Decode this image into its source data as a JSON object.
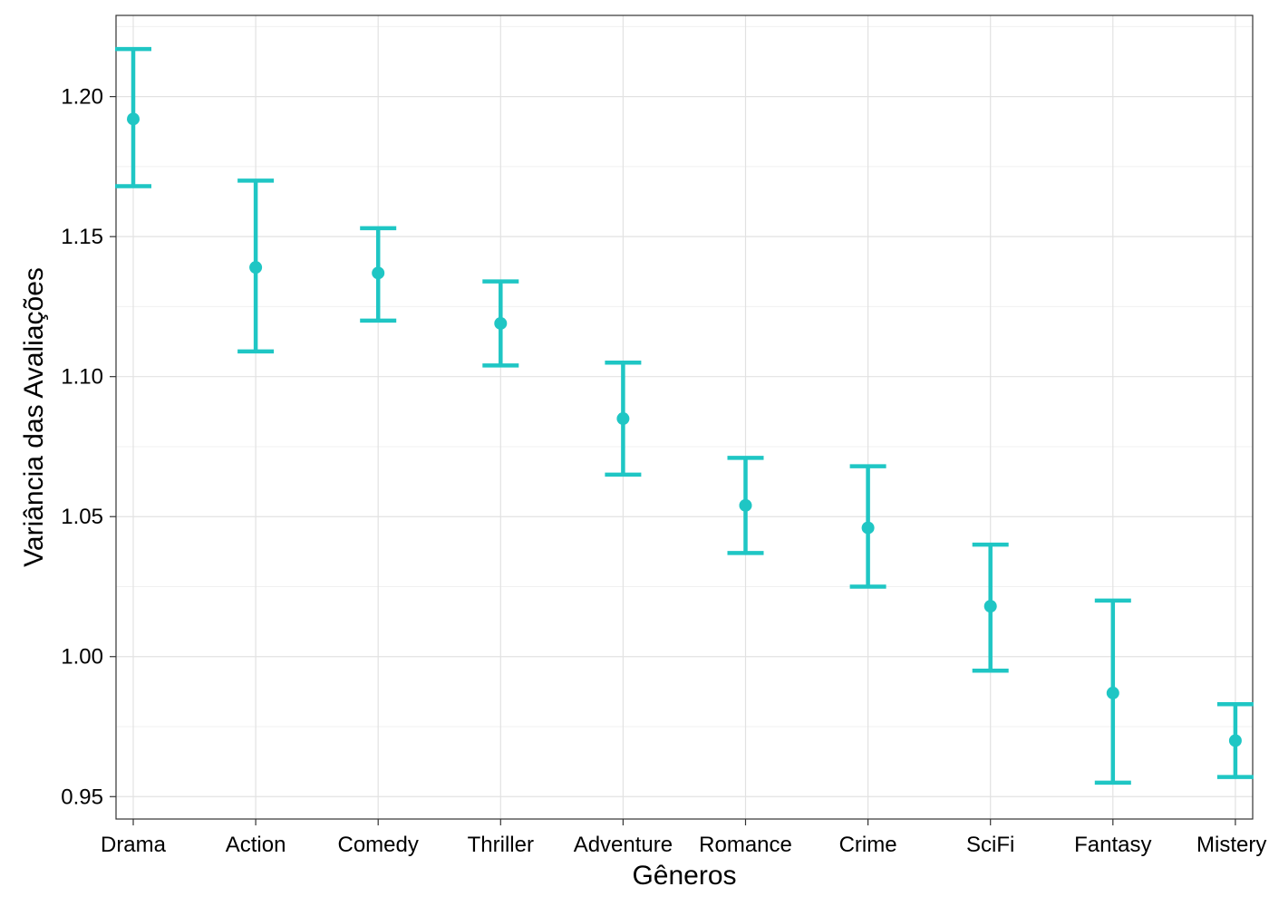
{
  "chart_data": {
    "type": "errorbar",
    "title": "",
    "xlabel": "Gêneros",
    "ylabel": "Variância das Avaliações",
    "ylim": [
      0.942,
      1.229
    ],
    "yticks": [
      0.95,
      1.0,
      1.05,
      1.1,
      1.15,
      1.2
    ],
    "ytick_labels": [
      "0.95",
      "1.00",
      "1.05",
      "1.10",
      "1.15",
      "1.20"
    ],
    "grid": true,
    "color": "#1fc6c4",
    "categories": [
      "Drama",
      "Action",
      "Comedy",
      "Thriller",
      "Adventure",
      "Romance",
      "Crime",
      "SciFi",
      "Fantasy",
      "Mistery"
    ],
    "values": [
      1.192,
      1.139,
      1.137,
      1.119,
      1.085,
      1.054,
      1.046,
      1.018,
      0.987,
      0.97
    ],
    "lower": [
      1.168,
      1.109,
      1.12,
      1.104,
      1.065,
      1.037,
      1.025,
      0.995,
      0.955,
      0.957
    ],
    "upper": [
      1.217,
      1.17,
      1.153,
      1.134,
      1.105,
      1.071,
      1.068,
      1.04,
      1.02,
      0.983
    ]
  }
}
